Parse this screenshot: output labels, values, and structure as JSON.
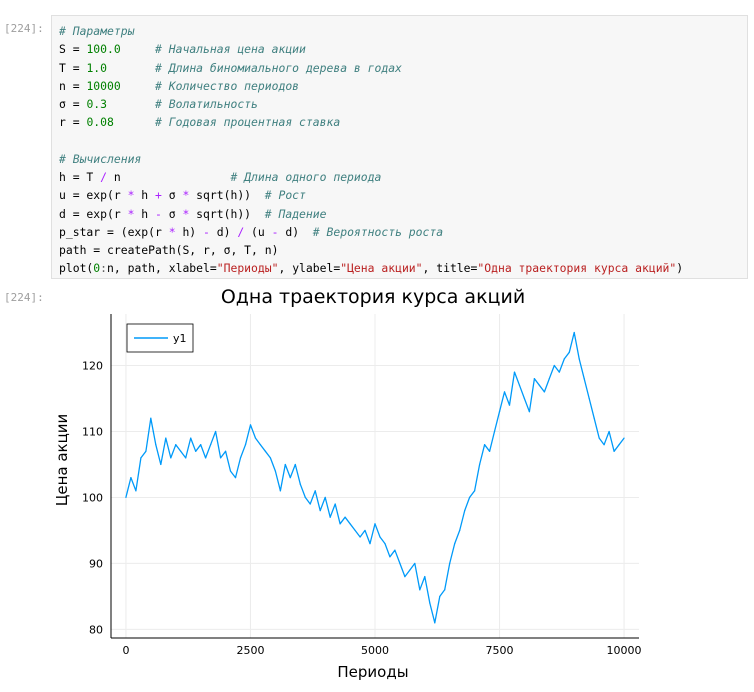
{
  "input_prompt": "[224]:",
  "output_prompt": "[224]:",
  "code_lines": [
    [
      {
        "t": "# Параметры",
        "c": "c"
      }
    ],
    [
      {
        "t": "S = "
      },
      {
        "t": "100.0",
        "c": "n"
      },
      {
        "t": "     "
      },
      {
        "t": "# Начальная цена акции",
        "c": "c"
      }
    ],
    [
      {
        "t": "T = "
      },
      {
        "t": "1.0",
        "c": "n"
      },
      {
        "t": "       "
      },
      {
        "t": "# Длина биномиального дерева в годах",
        "c": "c"
      }
    ],
    [
      {
        "t": "n = "
      },
      {
        "t": "10000",
        "c": "n"
      },
      {
        "t": "     "
      },
      {
        "t": "# Количество периодов",
        "c": "c"
      }
    ],
    [
      {
        "t": "σ = "
      },
      {
        "t": "0.3",
        "c": "n"
      },
      {
        "t": "       "
      },
      {
        "t": "# Волатильность",
        "c": "c"
      }
    ],
    [
      {
        "t": "r = "
      },
      {
        "t": "0.08",
        "c": "n"
      },
      {
        "t": "      "
      },
      {
        "t": "# Годовая процентная ставка",
        "c": "c"
      }
    ],
    [
      {
        "t": ""
      }
    ],
    [
      {
        "t": "# Вычисления",
        "c": "c"
      }
    ],
    [
      {
        "t": "h = T "
      },
      {
        "t": "/",
        "c": "o"
      },
      {
        "t": " n                "
      },
      {
        "t": "# Длина одного периода",
        "c": "c"
      }
    ],
    [
      {
        "t": "u = exp(r "
      },
      {
        "t": "*",
        "c": "o"
      },
      {
        "t": " h "
      },
      {
        "t": "+",
        "c": "o"
      },
      {
        "t": " σ "
      },
      {
        "t": "*",
        "c": "o"
      },
      {
        "t": " sqrt(h))  "
      },
      {
        "t": "# Рост",
        "c": "c"
      }
    ],
    [
      {
        "t": "d = exp(r "
      },
      {
        "t": "*",
        "c": "o"
      },
      {
        "t": " h "
      },
      {
        "t": "-",
        "c": "o"
      },
      {
        "t": " σ "
      },
      {
        "t": "*",
        "c": "o"
      },
      {
        "t": " sqrt(h))  "
      },
      {
        "t": "# Падение",
        "c": "c"
      }
    ],
    [
      {
        "t": "p_star = (exp(r "
      },
      {
        "t": "*",
        "c": "o"
      },
      {
        "t": " h) "
      },
      {
        "t": "-",
        "c": "o"
      },
      {
        "t": " d) "
      },
      {
        "t": "/",
        "c": "o"
      },
      {
        "t": " (u "
      },
      {
        "t": "-",
        "c": "o"
      },
      {
        "t": " d)  "
      },
      {
        "t": "# Вероятность роста",
        "c": "c"
      }
    ],
    [
      {
        "t": "path = createPath(S, r, σ, T, n)"
      }
    ],
    [
      {
        "t": "plot("
      },
      {
        "t": "0",
        "c": "n"
      },
      {
        "t": ":",
        "c": "o2"
      },
      {
        "t": "n, path, xlabel="
      },
      {
        "t": "\"Периоды\"",
        "c": "s"
      },
      {
        "t": ", ylabel="
      },
      {
        "t": "\"Цена акции\"",
        "c": "s"
      },
      {
        "t": ", title="
      },
      {
        "t": "\"Одна траектория курса акций\"",
        "c": "s"
      },
      {
        "t": ")"
      }
    ]
  ],
  "chart_data": {
    "type": "line",
    "title": "Одна траектория курса акций",
    "xlabel": "Периоды",
    "ylabel": "Цена акции",
    "xlim": [
      -300,
      10300
    ],
    "ylim": [
      78.7,
      127.8
    ],
    "xticks": [
      0,
      2500,
      5000,
      7500,
      10000
    ],
    "yticks": [
      80,
      90,
      100,
      110,
      120
    ],
    "grid": true,
    "legend": "top-left",
    "color": "#009af9",
    "series": [
      {
        "name": "y1",
        "x": [
          0,
          100,
          200,
          300,
          400,
          500,
          550,
          600,
          700,
          800,
          900,
          1000,
          1100,
          1200,
          1300,
          1400,
          1500,
          1600,
          1700,
          1800,
          1900,
          2000,
          2100,
          2200,
          2300,
          2400,
          2500,
          2600,
          2700,
          2800,
          2900,
          3000,
          3100,
          3200,
          3300,
          3400,
          3500,
          3600,
          3700,
          3800,
          3900,
          4000,
          4100,
          4200,
          4300,
          4400,
          4500,
          4600,
          4700,
          4800,
          4900,
          5000,
          5100,
          5200,
          5300,
          5400,
          5500,
          5600,
          5700,
          5800,
          5900,
          6000,
          6100,
          6200,
          6300,
          6400,
          6500,
          6600,
          6700,
          6800,
          6900,
          7000,
          7100,
          7200,
          7300,
          7400,
          7500,
          7600,
          7700,
          7800,
          7900,
          8000,
          8100,
          8200,
          8300,
          8400,
          8500,
          8600,
          8700,
          8800,
          8900,
          9000,
          9100,
          9200,
          9300,
          9400,
          9500,
          9600,
          9700,
          9800,
          9900,
          10000
        ],
        "values": [
          100,
          103,
          101,
          106,
          107,
          112,
          110,
          108,
          105,
          109,
          106,
          108,
          107,
          106,
          109,
          107,
          108,
          106,
          108,
          110,
          106,
          107,
          104,
          103,
          106,
          108,
          111,
          109,
          108,
          107,
          106,
          104,
          101,
          105,
          103,
          105,
          102,
          100,
          99,
          101,
          98,
          100,
          97,
          99,
          96,
          97,
          96,
          95,
          94,
          95,
          93,
          96,
          94,
          93,
          91,
          92,
          90,
          88,
          89,
          90,
          86,
          88,
          84,
          81,
          85,
          86,
          90,
          93,
          95,
          98,
          100,
          101,
          105,
          108,
          107,
          110,
          113,
          116,
          114,
          119,
          117,
          115,
          113,
          118,
          117,
          116,
          118,
          120,
          119,
          121,
          122,
          125,
          121,
          118,
          115,
          112,
          109,
          108,
          110,
          107,
          108,
          109
        ]
      }
    ]
  }
}
